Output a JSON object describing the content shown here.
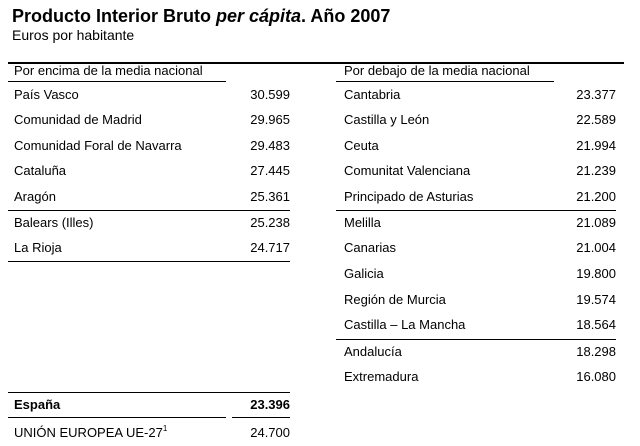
{
  "title": {
    "part1": "Producto Interior Bruto ",
    "italic": "per cápita",
    "part2": ". Año 2007"
  },
  "subtitle": "Euros por habitante",
  "left": {
    "header": "Por encima de la media nacional",
    "rows": [
      {
        "name": "País Vasco",
        "value": "30.599"
      },
      {
        "name": "Comunidad de Madrid",
        "value": "29.965"
      },
      {
        "name": "Comunidad Foral de Navarra",
        "value": "29.483"
      },
      {
        "name": "Cataluña",
        "value": "27.445"
      },
      {
        "name": "Aragón",
        "value": "25.361"
      },
      {
        "name": "Balears (Illes)",
        "value": "25.238"
      },
      {
        "name": "La Rioja",
        "value": "24.717"
      }
    ]
  },
  "right": {
    "header": "Por debajo de la media nacional",
    "rows": [
      {
        "name": "Cantabria",
        "value": "23.377"
      },
      {
        "name": "Castilla y León",
        "value": "22.589"
      },
      {
        "name": "Ceuta",
        "value": "21.994"
      },
      {
        "name": "Comunitat Valenciana",
        "value": "21.239"
      },
      {
        "name": "Principado de Asturias",
        "value": "21.200"
      },
      {
        "name": "Melilla",
        "value": "21.089"
      },
      {
        "name": "Canarias",
        "value": "21.004"
      },
      {
        "name": "Galicia",
        "value": "19.800"
      },
      {
        "name": "Región de Murcia",
        "value": "19.574"
      },
      {
        "name": "Castilla – La Mancha",
        "value": "18.564"
      },
      {
        "name": "Andalucía",
        "value": "18.298"
      },
      {
        "name": "Extremadura",
        "value": "16.080"
      }
    ]
  },
  "totals": {
    "spain": {
      "name": "España",
      "value": "23.396"
    },
    "eu": {
      "name": "UNIÓN EUROPEA UE-27",
      "footnote": "1",
      "value": "24.700"
    }
  }
}
